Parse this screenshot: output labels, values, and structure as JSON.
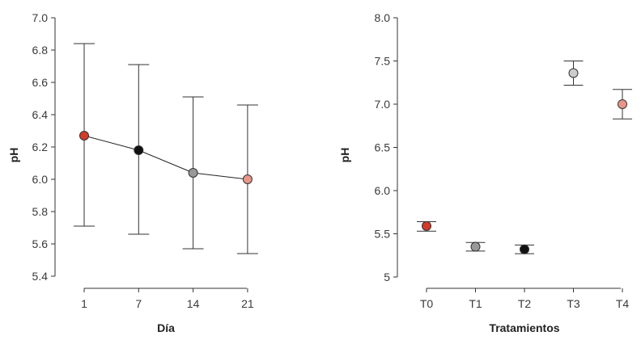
{
  "chart_data": [
    {
      "type": "line",
      "xlabel": "Día",
      "ylabel": "pH",
      "ylim": [
        5.4,
        7.0
      ],
      "yticks": [
        "5.4",
        "5.6",
        "5.8",
        "6.0",
        "6.2",
        "6.4",
        "6.6",
        "6.8",
        "7.0"
      ],
      "categories": [
        "1",
        "7",
        "14",
        "21"
      ],
      "tick_label_colors": [
        "#b03a2e",
        "#3a3a3a",
        "#3a3a3a",
        "#3a3a3a"
      ],
      "values": [
        6.27,
        6.18,
        6.04,
        6.0
      ],
      "err_low": [
        5.71,
        5.66,
        5.57,
        5.54
      ],
      "err_high": [
        6.84,
        6.71,
        6.51,
        6.46
      ],
      "colors": [
        "#d13b2a",
        "#111111",
        "#999999",
        "#e8968a"
      ],
      "grid": false
    },
    {
      "type": "scatter",
      "xlabel": "Tratamientos",
      "ylabel": "pH",
      "ylim": [
        5.0,
        8.0
      ],
      "yticks": [
        "5",
        "5.5",
        "6.0",
        "6.5",
        "7.0",
        "7.5",
        "8.0"
      ],
      "categories": [
        "T0",
        "T1",
        "T2",
        "T3",
        "T4"
      ],
      "values": [
        5.59,
        5.35,
        5.32,
        7.36,
        7.0
      ],
      "err_low": [
        5.53,
        5.3,
        5.27,
        7.22,
        6.83
      ],
      "err_high": [
        5.64,
        5.4,
        5.37,
        7.5,
        7.17
      ],
      "colors": [
        "#d13b2a",
        "#999999",
        "#111111",
        "#cccccc",
        "#e8968a"
      ],
      "grid": false
    }
  ]
}
